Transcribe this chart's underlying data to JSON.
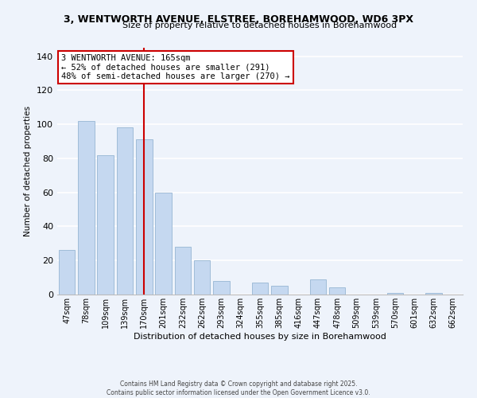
{
  "title_line1": "3, WENTWORTH AVENUE, ELSTREE, BOREHAMWOOD, WD6 3PX",
  "title_line2": "Size of property relative to detached houses in Borehamwood",
  "xlabel": "Distribution of detached houses by size in Borehamwood",
  "ylabel": "Number of detached properties",
  "bar_labels": [
    "47sqm",
    "78sqm",
    "109sqm",
    "139sqm",
    "170sqm",
    "201sqm",
    "232sqm",
    "262sqm",
    "293sqm",
    "324sqm",
    "355sqm",
    "385sqm",
    "416sqm",
    "447sqm",
    "478sqm",
    "509sqm",
    "539sqm",
    "570sqm",
    "601sqm",
    "632sqm",
    "662sqm"
  ],
  "bar_values": [
    26,
    102,
    82,
    98,
    91,
    60,
    28,
    20,
    8,
    0,
    7,
    5,
    0,
    9,
    4,
    0,
    0,
    1,
    0,
    1,
    0
  ],
  "bar_color": "#c5d8f0",
  "bar_edge_color": "#a0bcd8",
  "vline_bar_index": 4,
  "vline_color": "#cc0000",
  "annotation_title": "3 WENTWORTH AVENUE: 165sqm",
  "annotation_line2": "← 52% of detached houses are smaller (291)",
  "annotation_line3": "48% of semi-detached houses are larger (270) →",
  "annotation_box_color": "#ffffff",
  "annotation_box_edge": "#cc0000",
  "ylim": [
    0,
    145
  ],
  "yticks": [
    0,
    20,
    40,
    60,
    80,
    100,
    120,
    140
  ],
  "footer_line1": "Contains HM Land Registry data © Crown copyright and database right 2025.",
  "footer_line2": "Contains public sector information licensed under the Open Government Licence v3.0.",
  "background_color": "#eef3fb",
  "grid_color": "#ffffff"
}
